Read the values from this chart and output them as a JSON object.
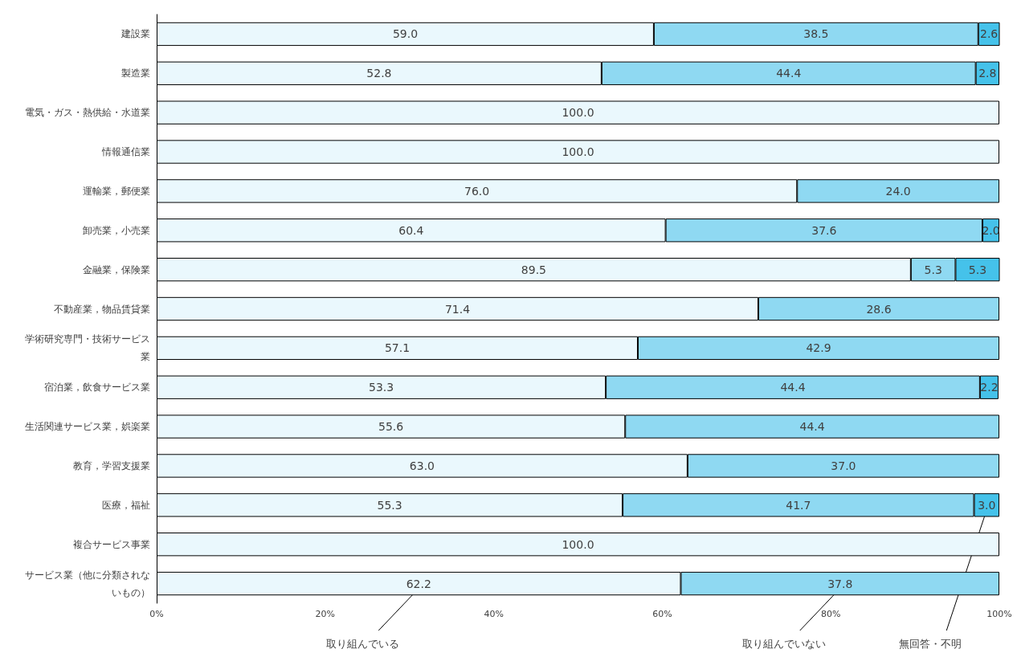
{
  "chart_data": {
    "type": "bar",
    "orientation": "horizontal",
    "stacked": true,
    "categories": [
      "建設業",
      "製造業",
      "電気・ガス・熱供給・水道業",
      "情報通信業",
      "運輸業，郵便業",
      "卸売業，小売業",
      "金融業，保険業",
      "不動産業，物品賃貸業",
      "学術研究専門・技術サービス業",
      "宿泊業，飲食サービス業",
      "生活関連サービス業，娯楽業",
      "教育，学習支援業",
      "医療，福祉",
      "複合サービス事業",
      "サービス業（他に分類されないもの）"
    ],
    "series": [
      {
        "name": "取り組んでいる",
        "color": "#eaf8fd",
        "values": [
          59.0,
          52.8,
          100.0,
          100.0,
          76.0,
          60.4,
          89.5,
          71.4,
          57.1,
          53.3,
          55.6,
          63.0,
          55.3,
          100.0,
          62.2
        ],
        "value_labels": [
          "59.0",
          "52.8",
          "100.0",
          "100.0",
          "76.0",
          "60.4",
          "89.5",
          "71.4",
          "57.1",
          "53.3",
          "55.6",
          "63.0",
          "55.3",
          "100.0",
          "62.2"
        ]
      },
      {
        "name": "取り組んでいない",
        "color": "#8fd9f2",
        "values": [
          38.5,
          44.4,
          null,
          null,
          24.0,
          37.6,
          5.3,
          28.6,
          42.9,
          44.4,
          44.4,
          37.0,
          41.7,
          null,
          37.8
        ],
        "value_labels": [
          "38.5",
          "44.4",
          null,
          null,
          "24.0",
          "37.6",
          "5.3",
          "28.6",
          "42.9",
          "44.4",
          "44.4",
          "37.0",
          "41.7",
          null,
          "37.8"
        ]
      },
      {
        "name": "無回答・不明",
        "color": "#45c2ea",
        "values": [
          2.6,
          2.8,
          null,
          null,
          null,
          2.0,
          5.3,
          null,
          null,
          2.2,
          null,
          null,
          3.0,
          null,
          null
        ],
        "value_labels": [
          "2.6",
          "2.8",
          null,
          null,
          null,
          "2.0",
          "5.3",
          null,
          null,
          "2.2",
          null,
          null,
          "3.0",
          null,
          null
        ]
      }
    ],
    "xlim": [
      0,
      100
    ],
    "xticks": [
      {
        "value": 0,
        "label": "0%"
      },
      {
        "value": 20,
        "label": "20%"
      },
      {
        "value": 40,
        "label": "40%"
      },
      {
        "value": 60,
        "label": "60%"
      },
      {
        "value": 80,
        "label": "80%"
      },
      {
        "value": 100,
        "label": "100%"
      }
    ],
    "grid": false,
    "legend": false
  }
}
